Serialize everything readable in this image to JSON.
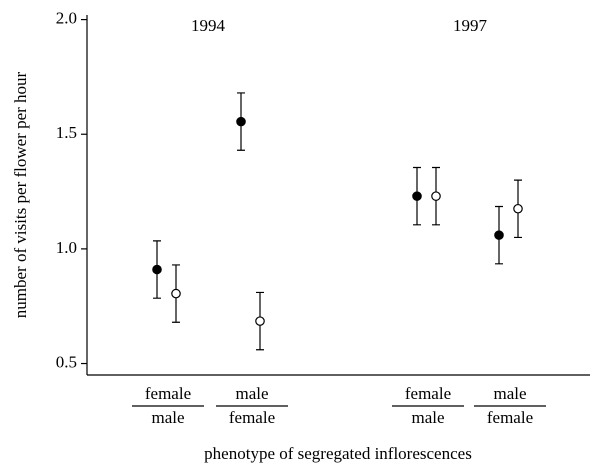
{
  "chart_data": {
    "type": "errorbar",
    "y_label": "number of visits per flower per hour",
    "x_label": "phenotype of segregated inflorescences",
    "annotations": [
      "1994",
      "1997"
    ],
    "categories": [
      {
        "over": "female",
        "under": "male"
      },
      {
        "over": "male",
        "under": "female"
      },
      {
        "over": "female",
        "under": "male"
      },
      {
        "over": "male",
        "under": "female"
      }
    ],
    "series": [
      {
        "fill": "#000000",
        "color": "#000000",
        "values": [
          0.91,
          1.555,
          1.23,
          1.06
        ],
        "errors": [
          0.125,
          0.125,
          0.125,
          0.125
        ]
      },
      {
        "fill": "#ffffff",
        "color": "#000000",
        "values": [
          0.805,
          0.685,
          1.23,
          1.175
        ],
        "errors": [
          0.125,
          0.125,
          0.125,
          0.125
        ]
      }
    ],
    "ylim": [
      0.45,
      2.02
    ],
    "yticks": [
      0.5,
      {
        "value": 1,
        "label": "1.0"
      },
      1.5,
      {
        "value": 2,
        "label": "2.0"
      }
    ]
  }
}
